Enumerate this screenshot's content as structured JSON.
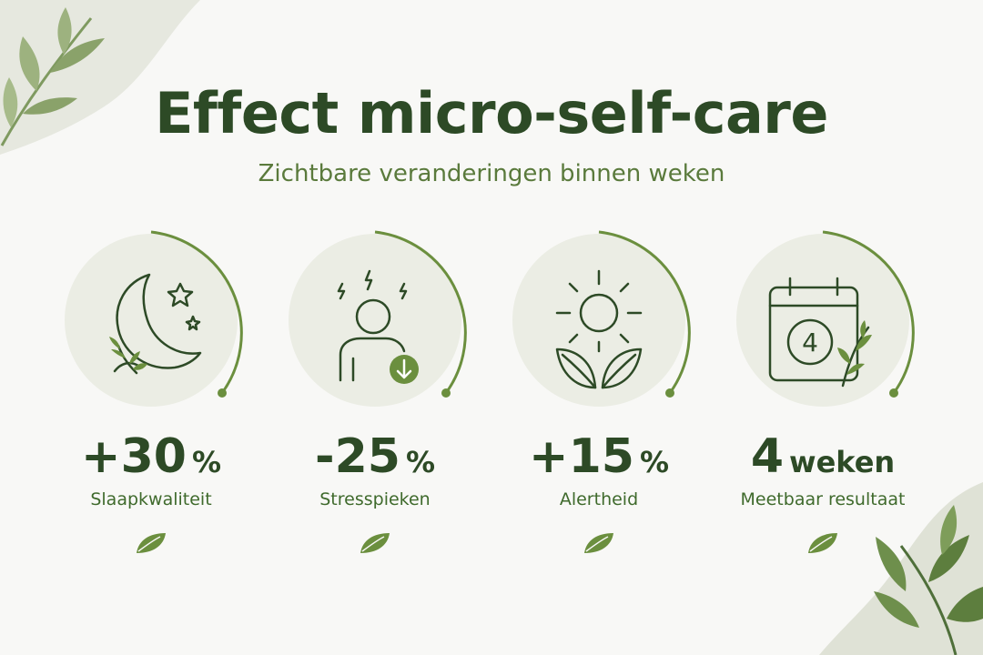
{
  "title": "Effect micro-self-care",
  "subtitle": "Zichtbare veranderingen binnen weken",
  "colors": {
    "dark_green": "#2d4a26",
    "accent_green": "#5a7a3c",
    "circle_bg": "#ebede4",
    "ring": "#6b8f3e",
    "background": "#f8f8f6"
  },
  "stats": [
    {
      "icon": "moon-stars-icon",
      "value": "+30",
      "unit": "%",
      "label": "Slaapkwaliteit"
    },
    {
      "icon": "stressed-person-icon",
      "value": "-25",
      "unit": "%",
      "label": "Stresspieken"
    },
    {
      "icon": "sun-leaves-icon",
      "value": "+15",
      "unit": "%",
      "label": "Alertheid"
    },
    {
      "icon": "calendar-icon",
      "value": "4",
      "unit": "weken",
      "label": "Meetbaar resultaat",
      "calendar_number": "4"
    }
  ]
}
